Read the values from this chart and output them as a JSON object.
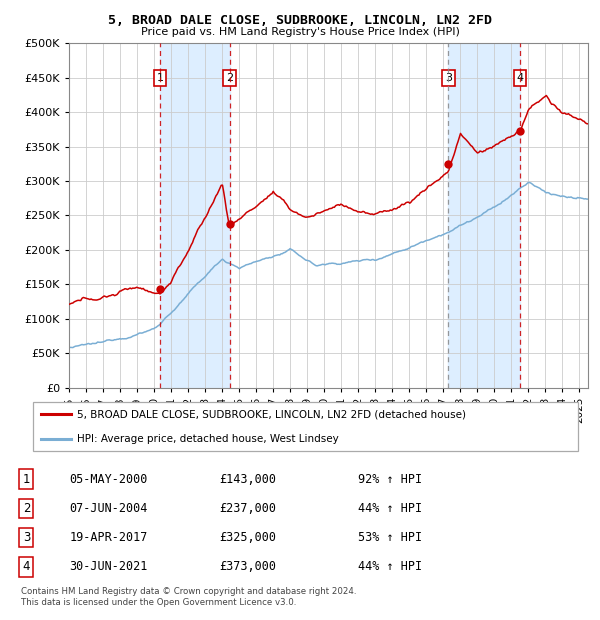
{
  "title": "5, BROAD DALE CLOSE, SUDBROOKE, LINCOLN, LN2 2FD",
  "subtitle": "Price paid vs. HM Land Registry's House Price Index (HPI)",
  "ylim": [
    0,
    500000
  ],
  "yticks": [
    0,
    50000,
    100000,
    150000,
    200000,
    250000,
    300000,
    350000,
    400000,
    450000,
    500000
  ],
  "ytick_labels": [
    "£0",
    "£50K",
    "£100K",
    "£150K",
    "£200K",
    "£250K",
    "£300K",
    "£350K",
    "£400K",
    "£450K",
    "£500K"
  ],
  "xlim_start": 1995.0,
  "xlim_end": 2025.5,
  "sale_color": "#cc0000",
  "hpi_color": "#7aaed4",
  "shade_color": "#ddeeff",
  "grid_color": "#cccccc",
  "sales": [
    {
      "num": 1,
      "date_year": 2000.35,
      "price": 143000
    },
    {
      "num": 2,
      "date_year": 2004.44,
      "price": 237000
    },
    {
      "num": 3,
      "date_year": 2017.3,
      "price": 325000
    },
    {
      "num": 4,
      "date_year": 2021.5,
      "price": 373000
    }
  ],
  "legend_red_label": "5, BROAD DALE CLOSE, SUDBROOKE, LINCOLN, LN2 2FD (detached house)",
  "legend_blue_label": "HPI: Average price, detached house, West Lindsey",
  "footer1": "Contains HM Land Registry data © Crown copyright and database right 2024.",
  "footer2": "This data is licensed under the Open Government Licence v3.0.",
  "table_rows": [
    {
      "num": 1,
      "date": "05-MAY-2000",
      "price": "£143,000",
      "hpi": "92% ↑ HPI"
    },
    {
      "num": 2,
      "date": "07-JUN-2004",
      "price": "£237,000",
      "hpi": "44% ↑ HPI"
    },
    {
      "num": 3,
      "date": "19-APR-2017",
      "price": "£325,000",
      "hpi": "53% ↑ HPI"
    },
    {
      "num": 4,
      "date": "30-JUN-2021",
      "price": "£373,000",
      "hpi": "44% ↑ HPI"
    }
  ]
}
